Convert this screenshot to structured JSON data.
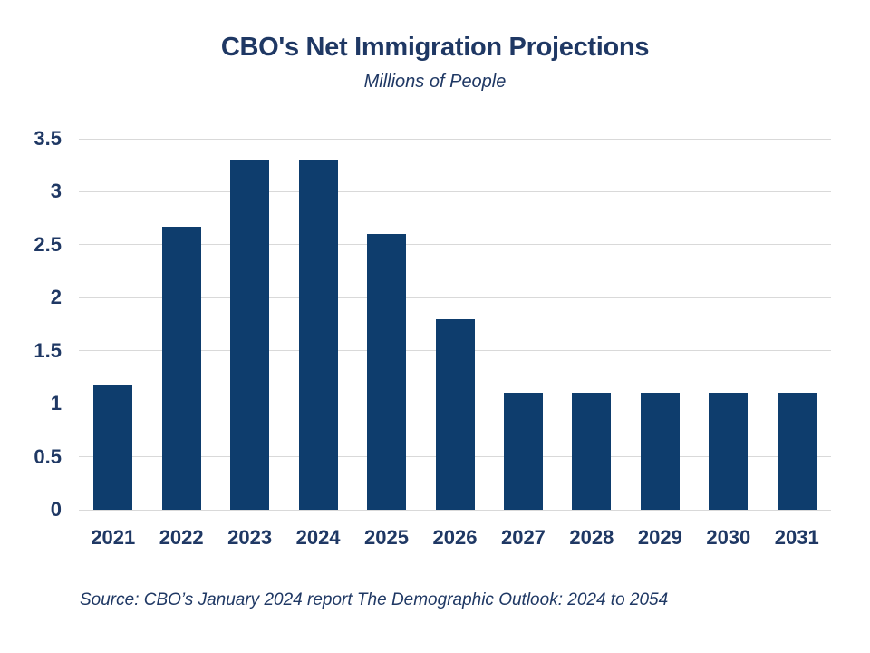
{
  "header": {
    "title": "CBO's Net Immigration Projections",
    "subtitle": "Millions of People"
  },
  "footer": {
    "source": "Source: CBO’s January 2024 report The Demographic Outlook: 2024 to 2054"
  },
  "colors": {
    "bar": "#0e3d6d",
    "text": "#1f3864",
    "gridline": "#d9d9d9",
    "background": "#ffffff"
  },
  "chart_data": {
    "type": "bar",
    "title": "CBO's Net Immigration Projections",
    "subtitle": "Millions of People",
    "categories": [
      "2021",
      "2022",
      "2023",
      "2024",
      "2025",
      "2026",
      "2027",
      "2028",
      "2029",
      "2030",
      "2031"
    ],
    "values": [
      1.17,
      2.67,
      3.3,
      3.3,
      2.6,
      1.8,
      1.1,
      1.1,
      1.1,
      1.1,
      1.1
    ],
    "xlabel": "",
    "ylabel": "Millions of People",
    "ylim": [
      0,
      3.5
    ],
    "yticks": [
      0,
      0.5,
      1,
      1.5,
      2,
      2.5,
      3,
      3.5
    ],
    "grid": true,
    "legend_position": "none",
    "source": "Source: CBO’s January 2024 report The Demographic Outlook: 2024 to 2054"
  }
}
